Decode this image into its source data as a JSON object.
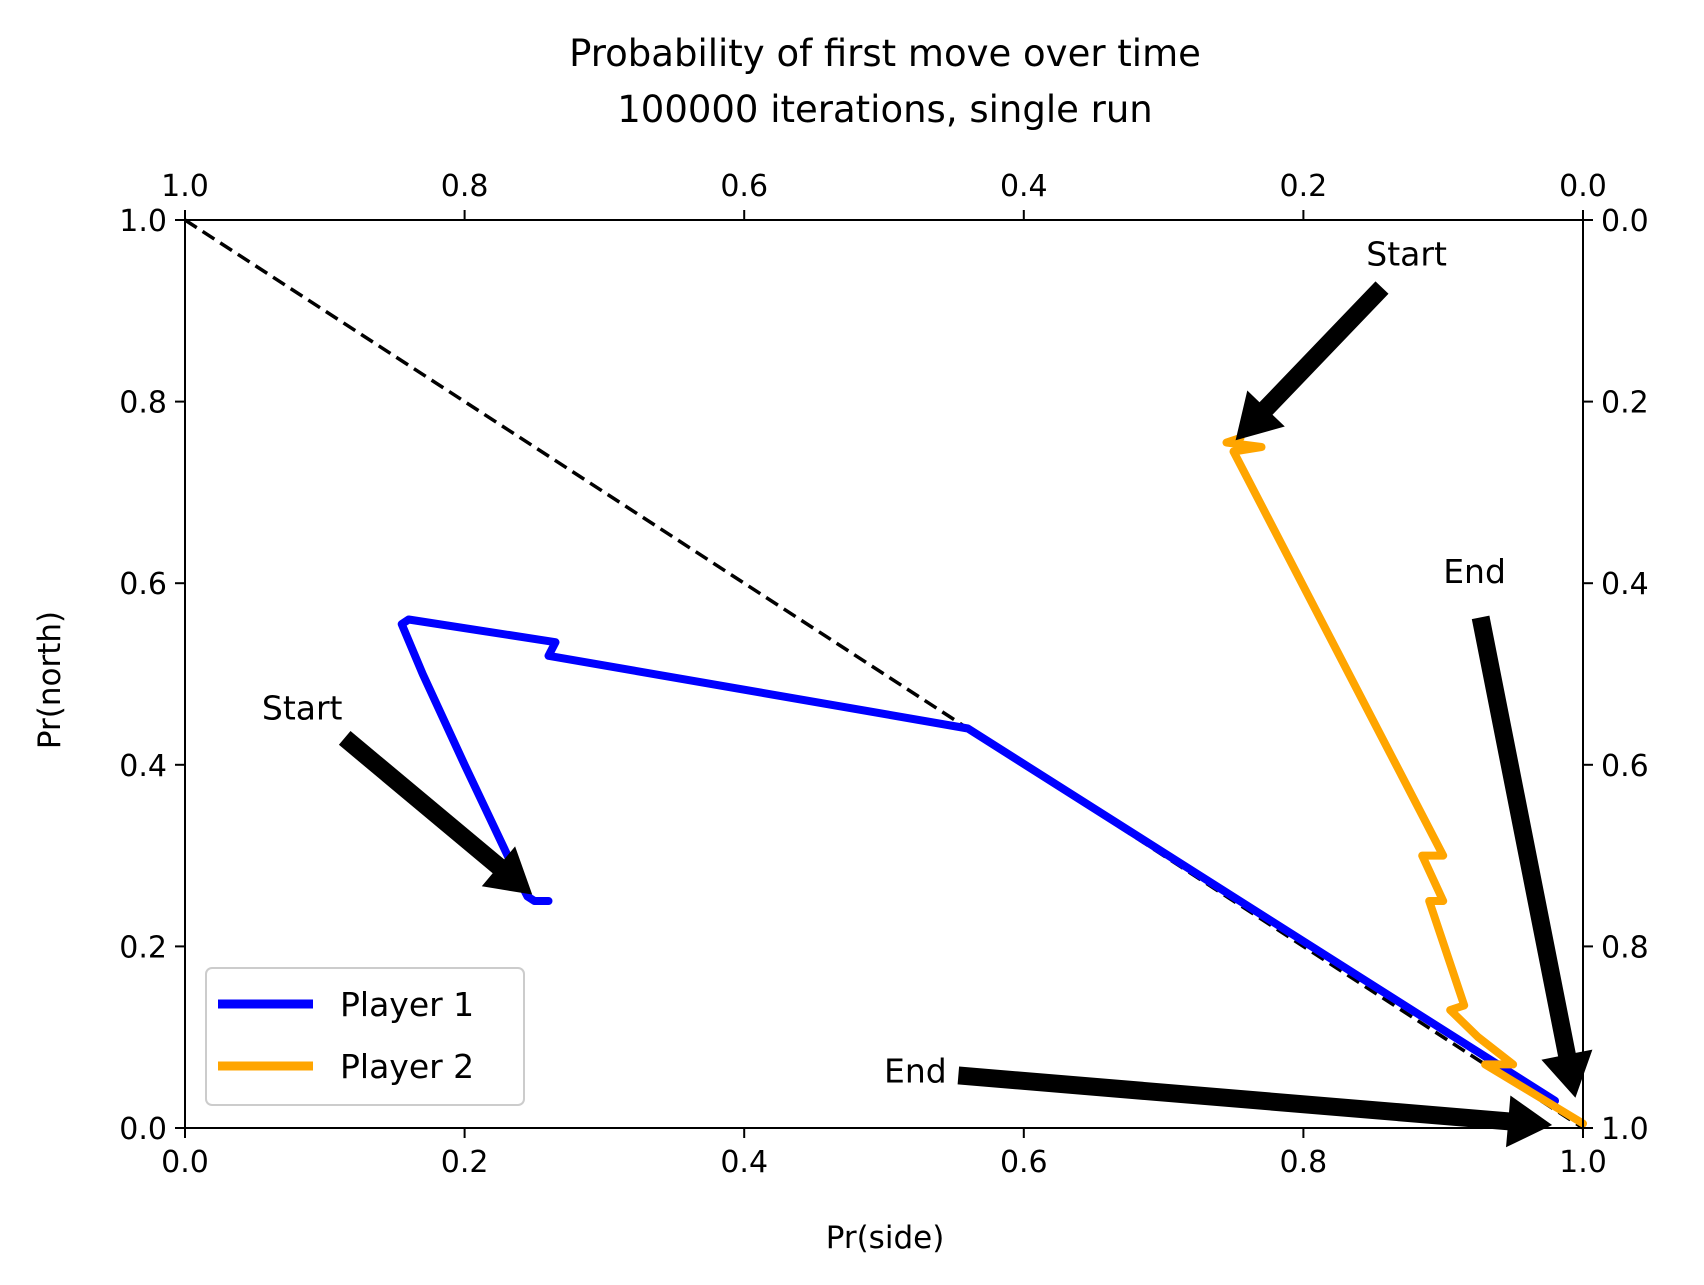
{
  "chart_data": {
    "type": "line",
    "title": "Probability of first move over time",
    "subtitle": "100000 iterations, single run",
    "xlabel": "Pr(side)",
    "ylabel": "Pr(north)",
    "xlim": [
      0,
      1
    ],
    "ylim": [
      0,
      1
    ],
    "x_ticks": [
      "0.0",
      "0.2",
      "0.4",
      "0.6",
      "0.8",
      "1.0"
    ],
    "y_ticks": [
      "0.0",
      "0.2",
      "0.4",
      "0.6",
      "0.8",
      "1.0"
    ],
    "top_ticks": [
      "1.0",
      "0.8",
      "0.6",
      "0.4",
      "0.2",
      "0.0"
    ],
    "right_ticks": [
      "1.0",
      "0.8",
      "0.6",
      "0.4",
      "0.2",
      "0.0"
    ],
    "grid": false,
    "legend_position": "lower left",
    "reference_line": {
      "x": [
        0,
        1
      ],
      "y": [
        1,
        0
      ],
      "style": "dashed",
      "color": "#000000"
    },
    "series": [
      {
        "name": "Player 1",
        "color": "#0000ff",
        "x": [
          0.26,
          0.25,
          0.245,
          0.24,
          0.2,
          0.17,
          0.155,
          0.16,
          0.265,
          0.26,
          0.56,
          0.98
        ],
        "y": [
          0.25,
          0.25,
          0.255,
          0.27,
          0.4,
          0.5,
          0.555,
          0.56,
          0.535,
          0.52,
          0.44,
          0.03
        ]
      },
      {
        "name": "Player 2",
        "color": "#ffa500",
        "x": [
          0.755,
          0.745,
          0.77,
          0.75,
          0.9,
          0.885,
          0.9,
          0.89,
          0.915,
          0.905,
          0.925,
          0.95,
          0.93,
          1.0
        ],
        "y": [
          0.76,
          0.755,
          0.75,
          0.745,
          0.3,
          0.3,
          0.25,
          0.25,
          0.135,
          0.13,
          0.1,
          0.07,
          0.07,
          0.005
        ]
      }
    ],
    "annotations": [
      {
        "text": "Start",
        "text_x": 0.055,
        "text_y": 0.45,
        "arrow_x": 0.25,
        "arrow_y": 0.255
      },
      {
        "text": "Start",
        "text_x": 0.845,
        "text_y": 0.95,
        "arrow_x": 0.75,
        "arrow_y": 0.755
      },
      {
        "text": "End",
        "text_x": 0.5,
        "text_y": 0.05,
        "arrow_x": 0.98,
        "arrow_y": 0.003
      },
      {
        "text": "End",
        "text_x": 0.9,
        "text_y": 0.6,
        "arrow_x": 0.995,
        "arrow_y": 0.03
      }
    ]
  }
}
